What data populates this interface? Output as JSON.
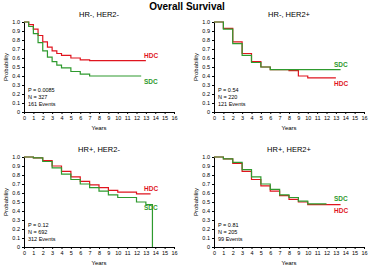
{
  "title": "Overall Survival",
  "chart_data": [
    {
      "type": "step",
      "title": "HR-, HER2-",
      "xlabel": "Years",
      "ylabel": "Probability",
      "xlim": [
        0,
        16
      ],
      "xticks": [
        0,
        1,
        2,
        3,
        4,
        5,
        6,
        7,
        8,
        9,
        10,
        11,
        12,
        13,
        14,
        15,
        16
      ],
      "ylim": [
        0,
        1
      ],
      "yticks": [
        0,
        0.1,
        0.2,
        0.3,
        0.4,
        0.5,
        0.6,
        0.7,
        0.8,
        0.9,
        {
          "value": 1,
          "label": "1.0"
        }
      ],
      "annotations": [
        "P = 0.0085",
        "N = 327",
        "161 Events"
      ],
      "series": [
        {
          "name": "HDC",
          "color": "#e0141e",
          "x": [
            0,
            0.5,
            1,
            1.5,
            2,
            2.5,
            3,
            3.5,
            4,
            5,
            6,
            7,
            8,
            10,
            12,
            13
          ],
          "values": [
            1,
            0.97,
            0.92,
            0.85,
            0.78,
            0.72,
            0.68,
            0.65,
            0.63,
            0.6,
            0.58,
            0.57,
            0.57,
            0.57,
            0.57,
            0.57
          ]
        },
        {
          "name": "SDC",
          "color": "#2e9a2e",
          "x": [
            0,
            0.5,
            1,
            1.5,
            2,
            2.5,
            3,
            3.5,
            4,
            5,
            6,
            7,
            8,
            10,
            12,
            12.5
          ],
          "values": [
            1,
            0.95,
            0.87,
            0.77,
            0.68,
            0.61,
            0.56,
            0.52,
            0.49,
            0.45,
            0.42,
            0.4,
            0.4,
            0.4,
            0.4,
            0.4
          ]
        }
      ]
    },
    {
      "type": "step",
      "title": "HR-, HER2+",
      "xlabel": "Years",
      "ylabel": "Probability",
      "xlim": [
        0,
        16
      ],
      "xticks": [
        0,
        1,
        2,
        3,
        4,
        5,
        6,
        7,
        8,
        9,
        10,
        11,
        12,
        13,
        14,
        15,
        16
      ],
      "ylim": [
        0,
        1
      ],
      "yticks": [
        0,
        0.1,
        0.2,
        0.3,
        0.4,
        0.5,
        0.6,
        0.7,
        0.8,
        0.9,
        {
          "value": 1,
          "label": "1.0"
        }
      ],
      "annotations": [
        "P = 0.54",
        "N = 220",
        "121 Events"
      ],
      "series": [
        {
          "name": "HDC",
          "color": "#e0141e",
          "x": [
            0,
            1,
            2,
            3,
            4,
            5,
            6,
            8,
            9,
            10,
            13
          ],
          "values": [
            1,
            0.93,
            0.78,
            0.65,
            0.56,
            0.5,
            0.47,
            0.46,
            0.4,
            0.38,
            0.38
          ]
        },
        {
          "name": "SDC",
          "color": "#2e9a2e",
          "x": [
            0,
            1,
            2,
            3,
            4,
            5,
            6,
            8,
            10,
            13.5
          ],
          "values": [
            1,
            0.92,
            0.76,
            0.63,
            0.55,
            0.5,
            0.47,
            0.47,
            0.47,
            0.47
          ]
        }
      ]
    },
    {
      "type": "step",
      "title": "HR+, HER2-",
      "xlabel": "Years",
      "ylabel": "Probability",
      "xlim": [
        0,
        16
      ],
      "xticks": [
        0,
        1,
        2,
        3,
        4,
        5,
        6,
        7,
        8,
        9,
        10,
        11,
        12,
        13,
        14,
        15,
        16
      ],
      "ylim": [
        0,
        1
      ],
      "yticks": [
        0,
        0.1,
        0.2,
        0.3,
        0.4,
        0.5,
        0.6,
        0.7,
        0.8,
        0.9,
        {
          "value": 1,
          "label": "1.0"
        }
      ],
      "annotations": [
        "P = 0.12",
        "N = 692",
        "312 Events"
      ],
      "series": [
        {
          "name": "HDC",
          "color": "#e0141e",
          "x": [
            0,
            1,
            2,
            3,
            4,
            5,
            6,
            7,
            8,
            9,
            10,
            12,
            13.5
          ],
          "values": [
            1,
            0.99,
            0.96,
            0.9,
            0.84,
            0.78,
            0.73,
            0.69,
            0.66,
            0.63,
            0.61,
            0.59,
            0.59
          ]
        },
        {
          "name": "SDC",
          "color": "#2e9a2e",
          "x": [
            0,
            1,
            2,
            3,
            4,
            5,
            6,
            7,
            8,
            9,
            10,
            12,
            13,
            13.7
          ],
          "values": [
            1,
            0.99,
            0.95,
            0.88,
            0.81,
            0.75,
            0.7,
            0.66,
            0.62,
            0.58,
            0.55,
            0.5,
            0.47,
            0
          ]
        }
      ]
    },
    {
      "type": "step",
      "title": "HR+, HER2+",
      "xlabel": "Years",
      "ylabel": "Probability",
      "xlim": [
        0,
        16
      ],
      "xticks": [
        0,
        1,
        2,
        3,
        4,
        5,
        6,
        7,
        8,
        9,
        10,
        11,
        12,
        13,
        14,
        15,
        16
      ],
      "ylim": [
        0,
        1
      ],
      "yticks": [
        0,
        0.1,
        0.2,
        0.3,
        0.4,
        0.5,
        0.6,
        0.7,
        0.8,
        0.9,
        {
          "value": 1,
          "label": "1.0"
        }
      ],
      "annotations": [
        "P = 0.81",
        "N = 205",
        "99 Events"
      ],
      "series": [
        {
          "name": "HDC",
          "color": "#e0141e",
          "x": [
            0,
            1,
            2,
            3,
            4,
            5,
            6,
            7,
            8,
            9,
            10,
            13.5
          ],
          "values": [
            1,
            0.98,
            0.93,
            0.84,
            0.75,
            0.68,
            0.62,
            0.57,
            0.53,
            0.5,
            0.47,
            0.47
          ]
        },
        {
          "name": "SDC",
          "color": "#2e9a2e",
          "x": [
            0,
            1,
            2,
            3,
            4,
            5,
            6,
            7,
            8,
            9,
            10,
            12
          ],
          "values": [
            1,
            0.98,
            0.94,
            0.86,
            0.78,
            0.7,
            0.64,
            0.58,
            0.55,
            0.51,
            0.48,
            0.48
          ]
        }
      ]
    }
  ]
}
